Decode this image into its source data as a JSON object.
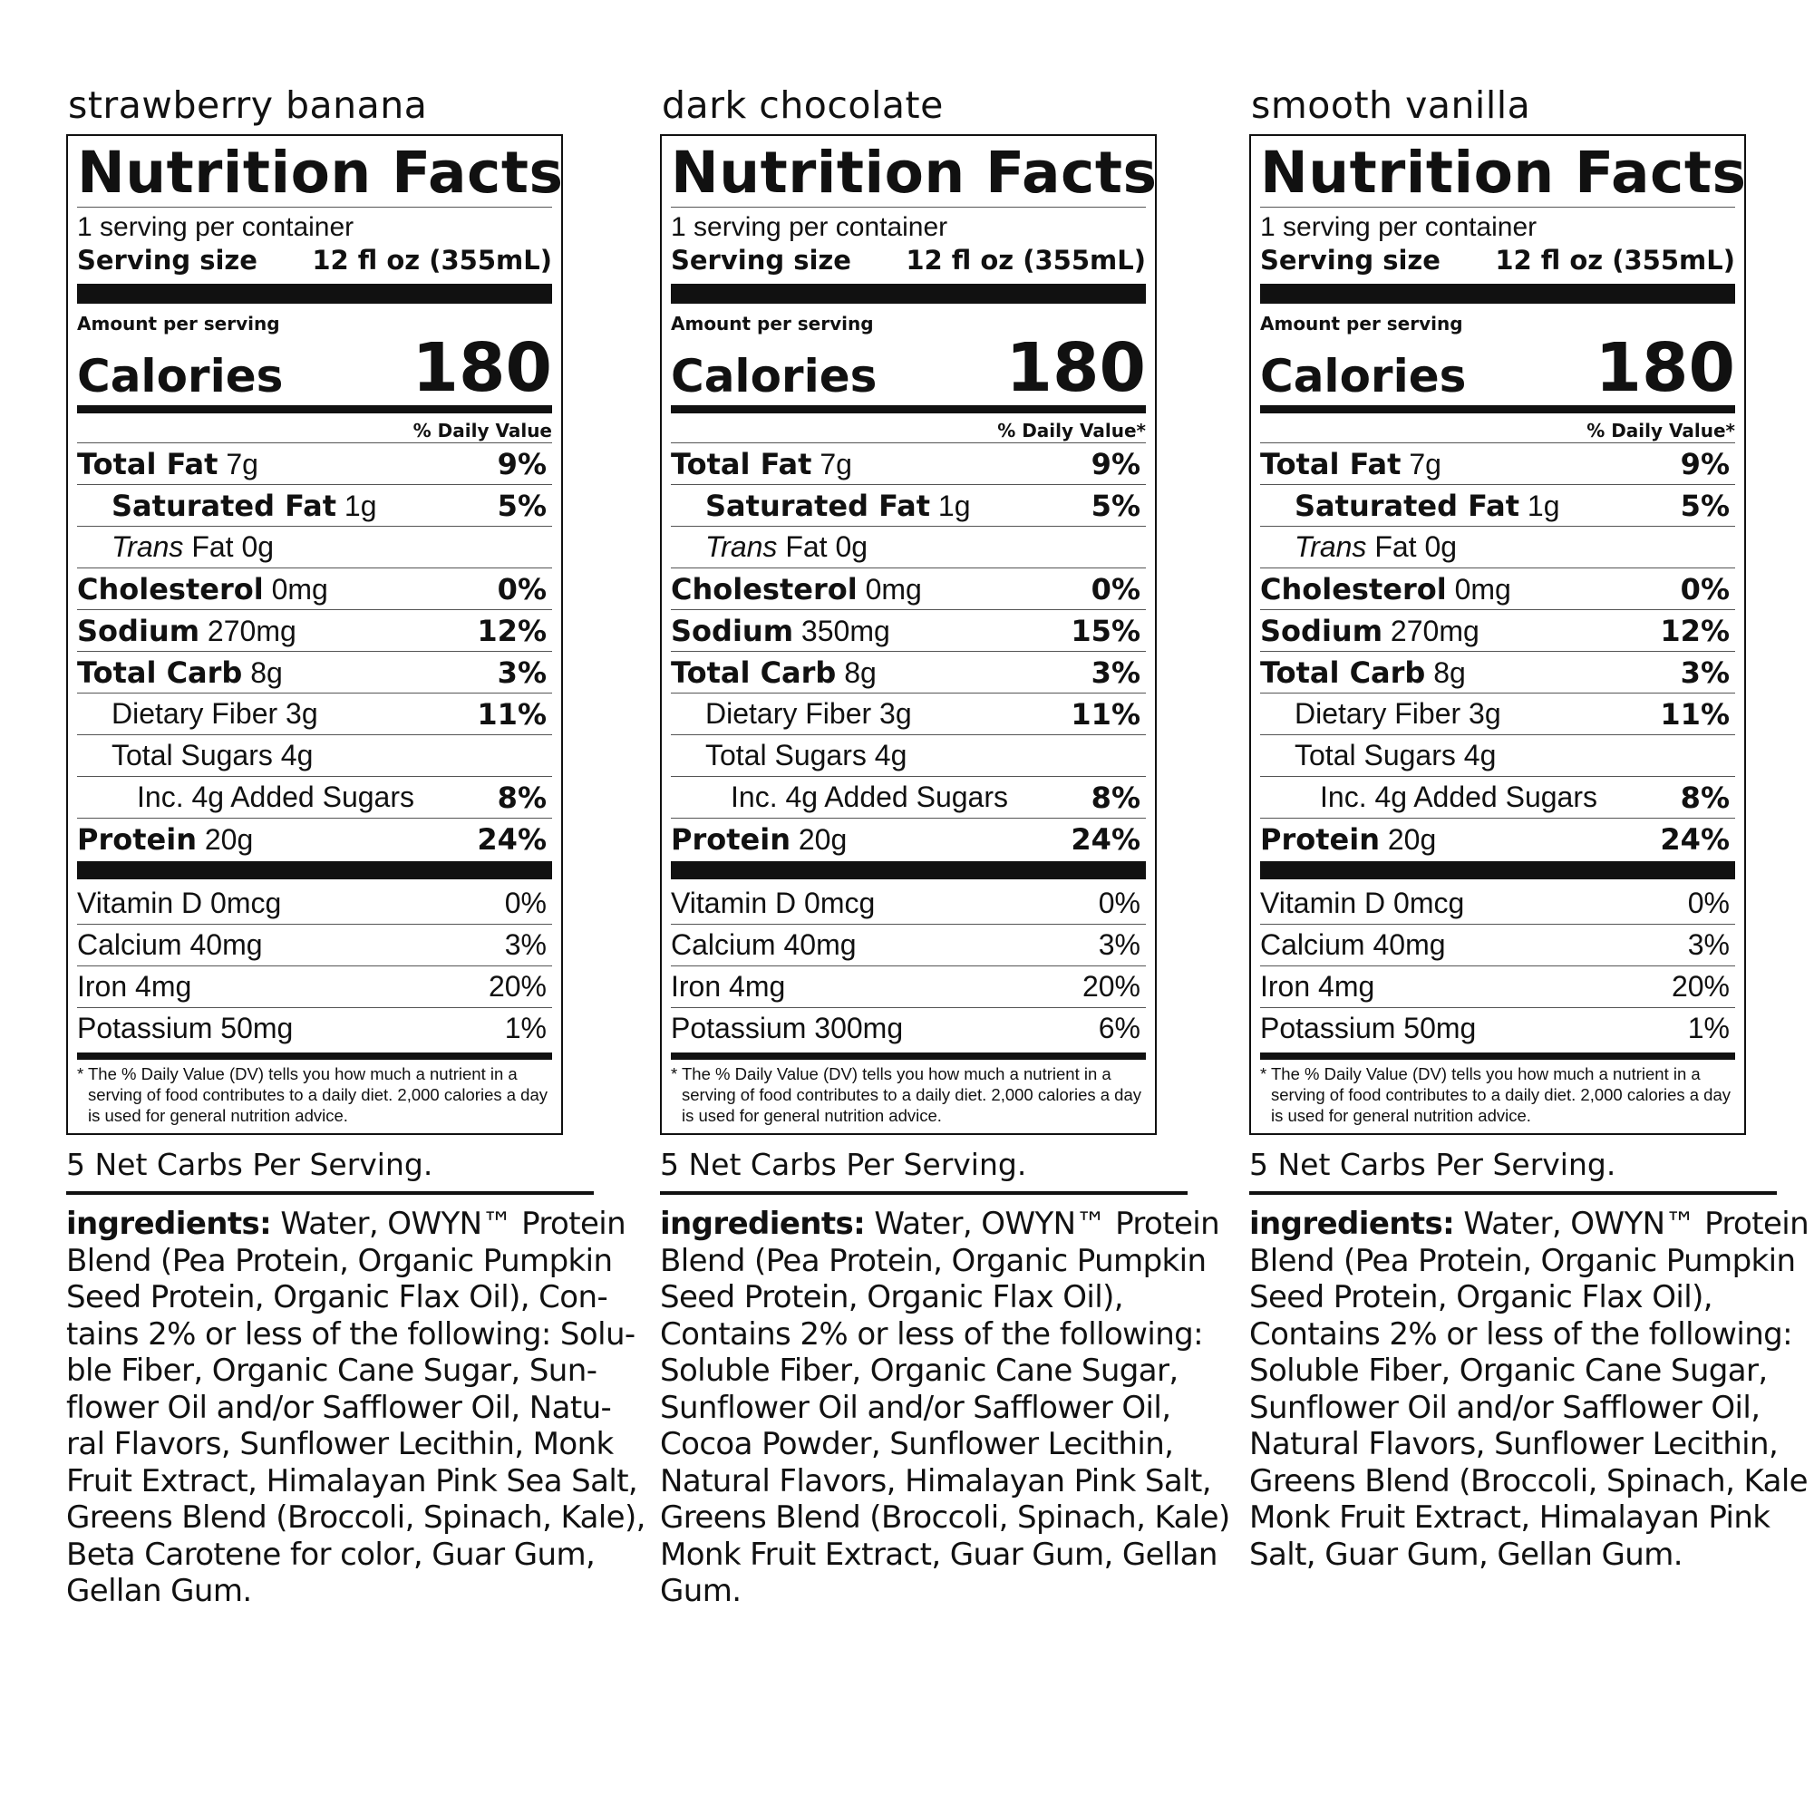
{
  "labels": [
    {
      "flavor": "strawberry banana",
      "title": "Nutrition Facts",
      "servings": "1 serving per container",
      "serving_size_label": "Serving size",
      "serving_size_value": "12 fl oz (355mL)",
      "amount_per_serving": "Amount per serving",
      "calories_label": "Calories",
      "calories": "180",
      "dv_header": "% Daily Value",
      "nutrients": [
        {
          "name": "Total Fat",
          "amount": "7g",
          "dv": "9%"
        },
        {
          "name": "Saturated Fat",
          "amount": "1g",
          "dv": "5%"
        },
        {
          "name": "Trans",
          "amount": "Fat 0g",
          "dv": ""
        },
        {
          "name": "Cholesterol",
          "amount": "0mg",
          "dv": "0%"
        },
        {
          "name": "Sodium",
          "amount": "270mg",
          "dv": "12%"
        },
        {
          "name": "Total Carb",
          "amount": "8g",
          "dv": "3%"
        },
        {
          "name": "Dietary Fiber",
          "amount": "3g",
          "dv": "11%"
        },
        {
          "name": "Total Sugars",
          "amount": "4g",
          "dv": ""
        },
        {
          "name": "Inc. 4g Added Sugars",
          "amount": "",
          "dv": "8%"
        },
        {
          "name": "Protein",
          "amount": "20g",
          "dv": "24%"
        }
      ],
      "vitamins": [
        {
          "name": "Vitamin D 0mcg",
          "dv": "0%"
        },
        {
          "name": "Calcium 40mg",
          "dv": "3%"
        },
        {
          "name": "Iron 4mg",
          "dv": "20%"
        },
        {
          "name": "Potassium 50mg",
          "dv": "1%"
        }
      ],
      "footnote": "* The % Daily Value (DV) tells you how much a nutrient in a serving of food contributes to a daily diet. 2,000 calories a day is used for general nutrition advice.",
      "net_carbs": "5 Net Carbs Per Serving.",
      "ingredients_label": "ingredients:",
      "ingredients_lines": [
        " Water, OWYN™ Protein",
        "Blend (Pea Protein, Organic Pumpkin",
        "Seed Protein, Organic Flax Oil),  Con-",
        "tains 2% or less of the following: Solu-",
        "ble Fiber, Organic Cane Sugar, Sun-",
        "flower Oil and/or Safflower Oil, Natu-",
        "ral Flavors, Sunflower Lecithin, Monk",
        "Fruit Extract, Himalayan Pink Sea Salt,",
        "Greens Blend (Broccoli, Spinach, Kale),",
        "Beta Carotene for color, Guar Gum,",
        "Gellan Gum."
      ]
    },
    {
      "flavor": "dark chocolate",
      "title": "Nutrition Facts",
      "servings": "1 serving per container",
      "serving_size_label": "Serving size",
      "serving_size_value": "12 fl oz (355mL)",
      "amount_per_serving": "Amount per serving",
      "calories_label": "Calories",
      "calories": "180",
      "dv_header": "% Daily Value*",
      "nutrients": [
        {
          "name": "Total Fat",
          "amount": "7g",
          "dv": "9%"
        },
        {
          "name": "Saturated Fat",
          "amount": "1g",
          "dv": "5%"
        },
        {
          "name": "Trans",
          "amount": "Fat 0g",
          "dv": ""
        },
        {
          "name": "Cholesterol",
          "amount": "0mg",
          "dv": "0%"
        },
        {
          "name": "Sodium",
          "amount": "350mg",
          "dv": "15%"
        },
        {
          "name": "Total Carb",
          "amount": "8g",
          "dv": "3%"
        },
        {
          "name": "Dietary Fiber",
          "amount": "3g",
          "dv": "11%"
        },
        {
          "name": "Total Sugars",
          "amount": "4g",
          "dv": ""
        },
        {
          "name": "Inc. 4g Added Sugars",
          "amount": "",
          "dv": "8%"
        },
        {
          "name": "Protein",
          "amount": "20g",
          "dv": "24%"
        }
      ],
      "vitamins": [
        {
          "name": "Vitamin D 0mcg",
          "dv": "0%"
        },
        {
          "name": "Calcium 40mg",
          "dv": "3%"
        },
        {
          "name": "Iron 4mg",
          "dv": "20%"
        },
        {
          "name": "Potassium 300mg",
          "dv": "6%"
        }
      ],
      "footnote": "* The % Daily Value (DV) tells you how much a nutrient in a serving of food contributes to a daily diet. 2,000 calories a day is used for general nutrition advice.",
      "net_carbs": "5 Net Carbs Per Serving.",
      "ingredients_label": "ingredients:",
      "ingredients_lines": [
        " Water, OWYN™ Protein",
        "Blend (Pea Protein, Organic Pumpkin",
        "Seed Protein, Organic Flax Oil),",
        "Contains 2% or less of the following:",
        "Soluble Fiber, Organic Cane Sugar,",
        "Sunflower Oil and/or Safflower Oil,",
        "Cocoa Powder, Sunflower Lecithin,",
        "Natural Flavors, Himalayan Pink Salt,",
        "Greens Blend (Broccoli, Spinach, Kale)",
        "Monk Fruit Extract, Guar Gum, Gellan",
        "Gum."
      ]
    },
    {
      "flavor": "smooth vanilla",
      "title": "Nutrition Facts",
      "servings": "1 serving per container",
      "serving_size_label": "Serving size",
      "serving_size_value": "12 fl oz (355mL)",
      "amount_per_serving": "Amount per serving",
      "calories_label": "Calories",
      "calories": "180",
      "dv_header": "% Daily Value*",
      "nutrients": [
        {
          "name": "Total Fat",
          "amount": "7g",
          "dv": "9%"
        },
        {
          "name": "Saturated Fat",
          "amount": "1g",
          "dv": "5%"
        },
        {
          "name": "Trans",
          "amount": "Fat 0g",
          "dv": ""
        },
        {
          "name": "Cholesterol",
          "amount": "0mg",
          "dv": "0%"
        },
        {
          "name": "Sodium",
          "amount": "270mg",
          "dv": "12%"
        },
        {
          "name": "Total Carb",
          "amount": "8g",
          "dv": "3%"
        },
        {
          "name": "Dietary Fiber",
          "amount": "3g",
          "dv": "11%"
        },
        {
          "name": "Total Sugars",
          "amount": "4g",
          "dv": ""
        },
        {
          "name": "Inc. 4g Added Sugars",
          "amount": "",
          "dv": "8%"
        },
        {
          "name": "Protein",
          "amount": "20g",
          "dv": "24%"
        }
      ],
      "vitamins": [
        {
          "name": "Vitamin D 0mcg",
          "dv": "0%"
        },
        {
          "name": "Calcium 40mg",
          "dv": "3%"
        },
        {
          "name": "Iron 4mg",
          "dv": "20%"
        },
        {
          "name": "Potassium 50mg",
          "dv": "1%"
        }
      ],
      "footnote": "* The % Daily Value (DV) tells you how much a nutrient in a serving of food contributes to a daily diet. 2,000 calories a day is used for general nutrition advice.",
      "net_carbs": "5 Net Carbs Per Serving.",
      "ingredients_label": "ingredients:",
      "ingredients_lines": [
        " Water, OWYN™ Protein",
        "Blend (Pea Protein, Organic Pumpkin",
        "Seed Protein, Organic Flax Oil),",
        "Contains 2% or less of the following:",
        "Soluble Fiber, Organic Cane Sugar,",
        "Sunflower Oil and/or Safflower Oil,",
        "Natural Flavors, Sunflower Lecithin,",
        "Greens Blend (Broccoli, Spinach, Kale",
        "Monk Fruit Extract, Himalayan Pink",
        "Salt, Guar Gum, Gellan Gum."
      ]
    }
  ]
}
